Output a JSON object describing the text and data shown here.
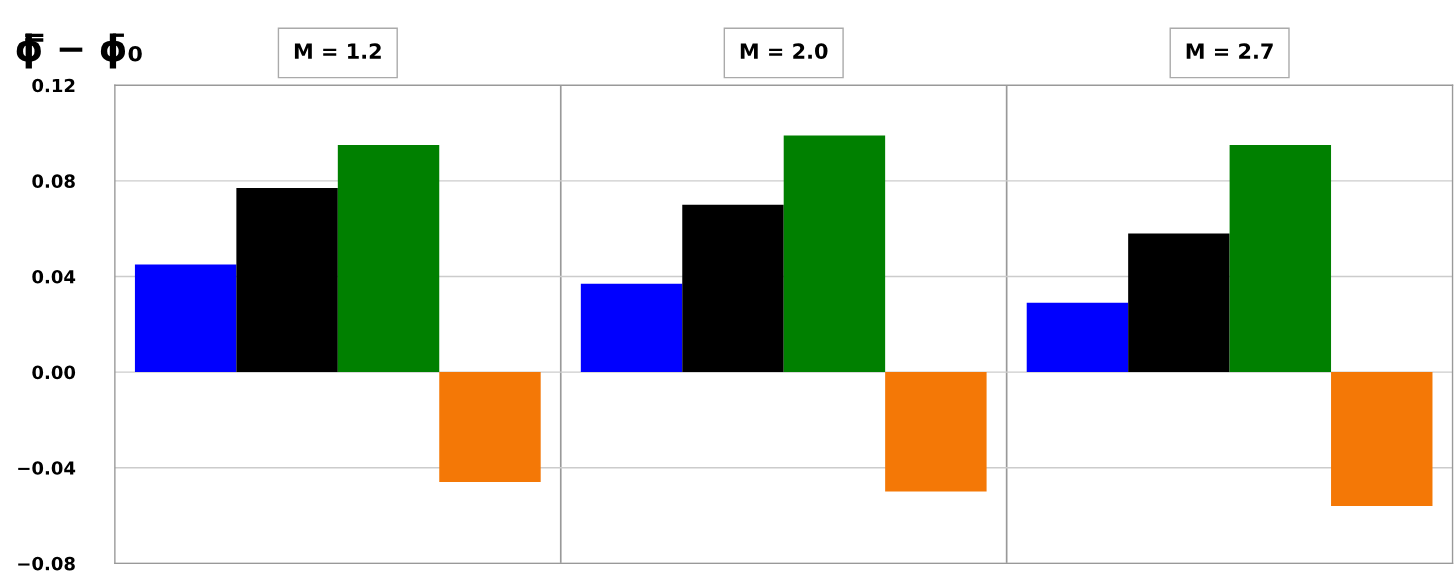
{
  "chart_data": {
    "type": "bar",
    "ylabel": "ϕ̿ − ϕ̄₀",
    "categories": [
      "M = 1.2",
      "M = 2.0",
      "M = 2.7"
    ],
    "series": [
      {
        "color": "#0000ff",
        "values": [
          0.045,
          0.037,
          0.029
        ]
      },
      {
        "color": "#000000",
        "values": [
          0.077,
          0.07,
          0.058
        ]
      },
      {
        "color": "#008000",
        "values": [
          0.095,
          0.099,
          0.095
        ]
      },
      {
        "color": "#f47806",
        "values": [
          -0.046,
          -0.05,
          -0.056
        ]
      }
    ],
    "ylim": [
      -0.08,
      0.12
    ],
    "yticks": [
      {
        "value": -0.08,
        "label": "−0.08"
      },
      {
        "value": -0.04,
        "label": "−0.04"
      },
      {
        "value": 0,
        "label": "0.00"
      },
      {
        "value": 0.04,
        "label": "0.04"
      },
      {
        "value": 0.08,
        "label": "0.08"
      },
      {
        "value": 0.12,
        "label": "0.12"
      }
    ],
    "grid": "y"
  }
}
